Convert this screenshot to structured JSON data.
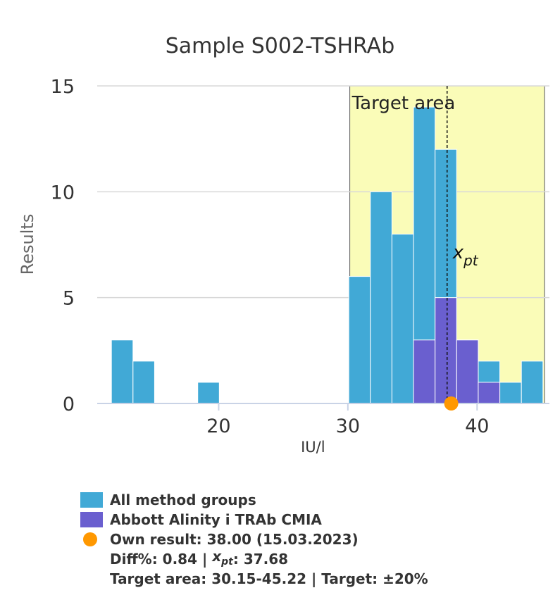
{
  "title": "Sample S002-TSHRAb",
  "colors": {
    "all": "#41a9d6",
    "method": "#6a5fcf",
    "own": "#ff9800",
    "target_fill": "#fafcb8",
    "grid": "#d8d8d8"
  },
  "chart_data": {
    "type": "bar",
    "title": "Sample S002-TSHRAb",
    "xlabel": "IU/l",
    "ylabel": "Results",
    "xlim": [
      10.6,
      45.6
    ],
    "ylim": [
      0,
      15
    ],
    "xticks": [
      20,
      30,
      40
    ],
    "yticks": [
      0,
      5,
      10,
      15
    ],
    "bin_width": 1.67,
    "bins": [
      11.7,
      13.37,
      15.04,
      16.71,
      18.38,
      20.05,
      21.72,
      23.39,
      25.06,
      26.73,
      28.4,
      30.07,
      31.74,
      33.41,
      35.08,
      36.75,
      38.42,
      40.09,
      41.76,
      43.43
    ],
    "series": [
      {
        "name": "All method groups",
        "values": [
          3,
          2,
          0,
          0,
          1,
          0,
          0,
          0,
          0,
          0,
          0,
          6,
          10,
          8,
          14,
          12,
          3,
          2,
          1,
          2
        ]
      },
      {
        "name": "Abbott Alinity i TRAb CMIA",
        "values": [
          0,
          0,
          0,
          0,
          0,
          0,
          0,
          0,
          0,
          0,
          0,
          0,
          0,
          0,
          3,
          5,
          3,
          1,
          0,
          0
        ]
      }
    ],
    "target_area": {
      "label": "Target area",
      "from": 30.15,
      "to": 45.22
    },
    "xpt": {
      "label": "x",
      "sub": "pt",
      "value": 37.68
    },
    "own_result": 38.0,
    "grid": true
  },
  "legend": {
    "all_label": "All method groups",
    "method_label": "Abbott Alinity i TRAb CMIA",
    "own_label": "Own result: 38.00 (15.03.2023)",
    "diff_prefix": "Diff%: 0.84 | ",
    "xpt_x": "x",
    "xpt_sub": "pt",
    "xpt_value": ": 37.68",
    "target_line": "Target area: 30.15-45.22 | Target: ±20%"
  }
}
